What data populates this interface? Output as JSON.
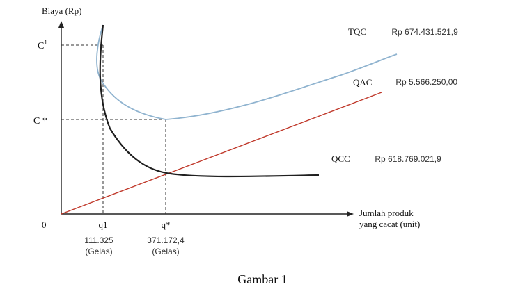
{
  "chart_data": {
    "type": "line",
    "ylabel": "Biaya (Rp)",
    "xlabel": [
      "Jumlah produk",
      "yang cacat (unit)"
    ],
    "origin_label": "0",
    "x_markers": [
      {
        "label": "q1",
        "value_line1": "111.325",
        "value_line2": "(Gelas)"
      },
      {
        "label": "q*",
        "value_line1": "371.172,4",
        "value_line2": "(Gelas)"
      }
    ],
    "y_markers": [
      {
        "label": "C",
        "superscript": "1"
      },
      {
        "label": "C *",
        "superscript": ""
      }
    ],
    "series": [
      {
        "key": "tqc",
        "name": "TQC",
        "value_text": "= Rp 674.431.521,9",
        "color": "#8fb3cf"
      },
      {
        "key": "qac",
        "name": "QAC",
        "value_text": "= Rp 5.566.250,00",
        "color": "#c0392b"
      },
      {
        "key": "qcc",
        "name": "QCC",
        "value_text": "= Rp 618.769.021,9",
        "color": "#1f1f1f"
      }
    ],
    "grid": false
  },
  "caption": "Gambar 1"
}
